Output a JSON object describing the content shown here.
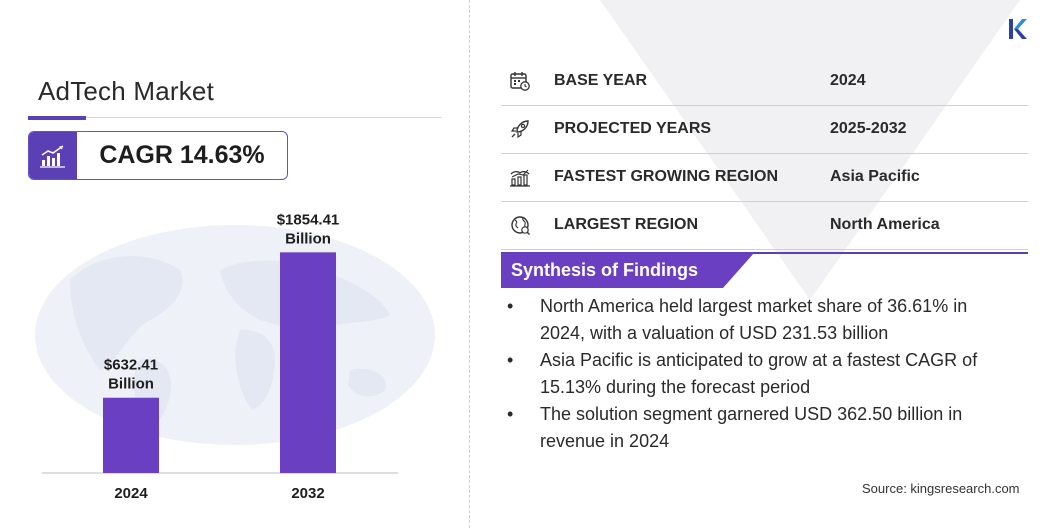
{
  "title": "AdTech Market",
  "cagr": {
    "label": "CAGR 14.63%",
    "icon": "growth-chart-icon"
  },
  "chart_data": {
    "type": "bar",
    "categories": [
      "2024",
      "2032"
    ],
    "values": [
      632.41,
      1854.41
    ],
    "value_labels": [
      {
        "line1": "$632.41",
        "line2": "Billion"
      },
      {
        "line1": "$1854.41",
        "line2": "Billion"
      }
    ],
    "ylim": [
      0,
      2000
    ],
    "bar_color": "#6a3fc2",
    "grid": false
  },
  "info_rows": [
    {
      "icon": "calendar-icon",
      "label": "BASE YEAR",
      "value": "2024"
    },
    {
      "icon": "rocket-icon",
      "label": "PROJECTED YEARS",
      "value": "2025-2032"
    },
    {
      "icon": "region-growth-icon",
      "label": "FASTEST GROWING REGION",
      "value": "Asia Pacific"
    },
    {
      "icon": "globe-icon",
      "label": "LARGEST REGION",
      "value": "North America"
    }
  ],
  "synthesis": {
    "title": "Synthesis of Findings",
    "bullet": "•",
    "items": [
      "North America held largest market share of 36.61% in 2024, with a valuation of USD 231.53 billion",
      "Asia Pacific is anticipated to grow at a fastest CAGR of 15.13% during the forecast period",
      "The solution segment garnered USD 362.50 billion in revenue in 2024"
    ]
  },
  "source": "Source:  kingsresearch.com",
  "colors": {
    "accent": "#5b3fb5",
    "bar": "#6a3fc2",
    "text": "#2a2a2a"
  }
}
